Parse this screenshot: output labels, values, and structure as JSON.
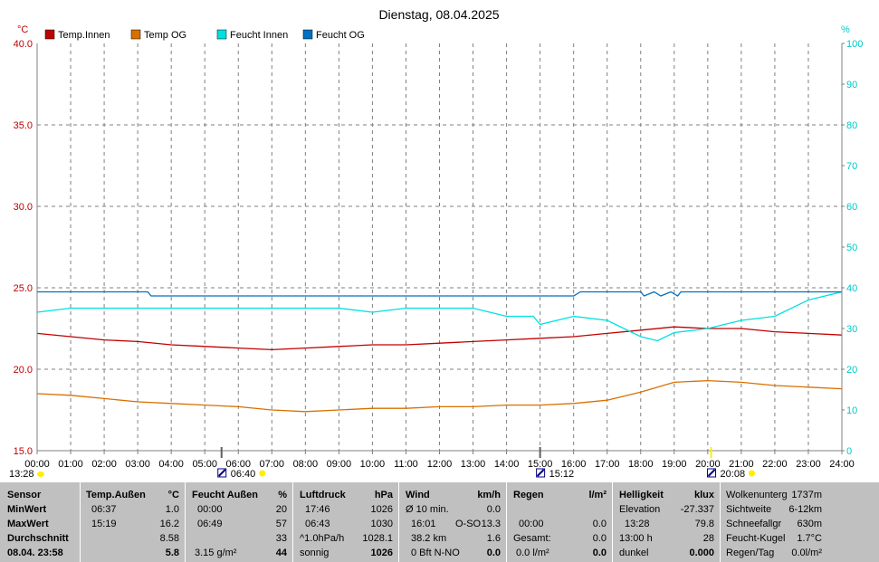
{
  "chart_data": {
    "type": "line",
    "title": "Dienstag, 08.04.2025",
    "y_left_unit": "°C",
    "y_right_unit": "%",
    "y_left_range": [
      15.0,
      40.0
    ],
    "y_right_range": [
      0,
      100
    ],
    "y_left_ticks": [
      "15.0",
      "20.0",
      "25.0",
      "30.0",
      "35.0",
      "40.0"
    ],
    "y_right_ticks": [
      "0",
      "10",
      "20",
      "30",
      "40",
      "50",
      "60",
      "70",
      "80",
      "90",
      "100"
    ],
    "x_ticks": [
      "00:00",
      "01:00",
      "02:00",
      "03:00",
      "04:00",
      "05:00",
      "06:00",
      "07:00",
      "08:00",
      "09:00",
      "10:00",
      "11:00",
      "12:00",
      "13:00",
      "14:00",
      "15:00",
      "16:00",
      "17:00",
      "18:00",
      "19:00",
      "20:00",
      "21:00",
      "22:00",
      "23:00",
      "24:00"
    ],
    "x_range_hours": [
      0,
      24
    ],
    "grid": true,
    "legend_position": "top-left",
    "series": [
      {
        "name": "Temp.Innen",
        "axis": "left",
        "color": "#c00000",
        "points": [
          [
            0,
            22.2
          ],
          [
            1,
            22.0
          ],
          [
            2,
            21.8
          ],
          [
            3,
            21.7
          ],
          [
            4,
            21.5
          ],
          [
            5,
            21.4
          ],
          [
            6,
            21.3
          ],
          [
            7,
            21.2
          ],
          [
            8,
            21.3
          ],
          [
            9,
            21.4
          ],
          [
            10,
            21.5
          ],
          [
            11,
            21.5
          ],
          [
            12,
            21.6
          ],
          [
            13,
            21.7
          ],
          [
            14,
            21.8
          ],
          [
            15,
            21.9
          ],
          [
            16,
            22.0
          ],
          [
            17,
            22.2
          ],
          [
            18,
            22.4
          ],
          [
            19,
            22.6
          ],
          [
            20,
            22.5
          ],
          [
            21,
            22.5
          ],
          [
            22,
            22.3
          ],
          [
            23,
            22.2
          ],
          [
            24,
            22.1
          ]
        ]
      },
      {
        "name": "Temp OG",
        "axis": "left",
        "color": "#d87000",
        "points": [
          [
            0,
            18.5
          ],
          [
            1,
            18.4
          ],
          [
            2,
            18.2
          ],
          [
            3,
            18.0
          ],
          [
            4,
            17.9
          ],
          [
            5,
            17.8
          ],
          [
            6,
            17.7
          ],
          [
            7,
            17.5
          ],
          [
            8,
            17.4
          ],
          [
            9,
            17.5
          ],
          [
            10,
            17.6
          ],
          [
            11,
            17.6
          ],
          [
            12,
            17.7
          ],
          [
            13,
            17.7
          ],
          [
            14,
            17.8
          ],
          [
            15,
            17.8
          ],
          [
            16,
            17.9
          ],
          [
            17,
            18.1
          ],
          [
            18,
            18.6
          ],
          [
            19,
            19.2
          ],
          [
            20,
            19.3
          ],
          [
            21,
            19.2
          ],
          [
            22,
            19.0
          ],
          [
            23,
            18.9
          ],
          [
            24,
            18.8
          ]
        ]
      },
      {
        "name": "Feucht Innen",
        "axis": "right",
        "color": "#00e0e0",
        "points": [
          [
            0,
            34
          ],
          [
            1,
            35
          ],
          [
            2,
            35
          ],
          [
            3,
            35
          ],
          [
            4,
            35
          ],
          [
            5,
            35
          ],
          [
            6,
            35
          ],
          [
            7,
            35
          ],
          [
            8,
            35
          ],
          [
            9,
            35
          ],
          [
            10,
            34
          ],
          [
            11,
            35
          ],
          [
            12,
            35
          ],
          [
            13,
            35
          ],
          [
            14,
            33
          ],
          [
            14.8,
            33
          ],
          [
            15,
            31
          ],
          [
            16,
            33
          ],
          [
            17,
            32
          ],
          [
            18,
            28
          ],
          [
            18.5,
            27
          ],
          [
            19,
            29
          ],
          [
            20,
            30
          ],
          [
            21,
            32
          ],
          [
            22,
            33
          ],
          [
            23,
            37
          ],
          [
            24,
            39
          ]
        ]
      },
      {
        "name": "Feucht OG",
        "axis": "right",
        "color": "#0070c0",
        "points": [
          [
            0,
            39
          ],
          [
            3.3,
            39
          ],
          [
            3.4,
            38
          ],
          [
            16,
            38
          ],
          [
            16.2,
            39
          ],
          [
            18,
            39
          ],
          [
            18.1,
            38
          ],
          [
            18.4,
            39
          ],
          [
            18.6,
            38
          ],
          [
            18.9,
            39
          ],
          [
            19.1,
            38
          ],
          [
            19.2,
            39
          ],
          [
            24,
            39
          ]
        ]
      }
    ],
    "annotations": [
      {
        "x_hours": 5.5,
        "marker_label": "06:40",
        "kind": "sunrise"
      },
      {
        "x_hours": 15.0,
        "marker_label": "15:12",
        "kind": "highpoint"
      },
      {
        "x_hours": 20.1,
        "marker_label": "20:08",
        "kind": "sunset"
      },
      {
        "x_hours": 0,
        "marker_label": "13:28",
        "kind": "moon"
      }
    ]
  },
  "panel": {
    "sensor": {
      "header": "Sensor",
      "min": "MinWert",
      "max": "MaxWert",
      "avg": "Durchschnitt",
      "current": "08.04. 23:58"
    },
    "temp": {
      "header": "Temp.Außen",
      "unit": "°C",
      "min_time": "06:37",
      "min_val": "1.0",
      "max_time": "15:19",
      "max_val": "16.2",
      "avg_val": "8.58",
      "current": "5.8"
    },
    "humid": {
      "header": "Feucht Außen",
      "unit": "%",
      "min_time": "00:00",
      "min_val": "20",
      "max_time": "06:49",
      "max_val": "57",
      "avg_val": "33",
      "abs": "3.15 g/m²",
      "current": "44"
    },
    "press": {
      "header": "Luftdruck",
      "unit": "hPa",
      "min_time": "17:46",
      "min_val": "1026",
      "max_time": "06:43",
      "max_val": "1030",
      "trend_label": "^1.0hPa/h",
      "trend_val": "1028.1",
      "forecast": "sonnig",
      "current": "1026"
    },
    "wind": {
      "header": "Wind",
      "unit": "km/h",
      "avg10_label": "Ø 10 min.",
      "avg10_val": "0.0",
      "max_time": "16:01",
      "max_dir": "O-SO",
      "max_val": "13.3",
      "dist_label": "38.2 km",
      "dist_val": "1.6",
      "bft": "0 Bft N-NO",
      "current": "0.0"
    },
    "rain": {
      "header": "Regen",
      "unit": "l/m²",
      "r1_time": "00:00",
      "r1_val": "0.0",
      "total_label": "Gesamt:",
      "total_val": "0.0",
      "cur_label": "0.0 l/m²",
      "current": "0.0"
    },
    "light": {
      "header": "Helligkeit",
      "unit": "klux",
      "elev_label": "Elevation",
      "elev_val": "-27.337",
      "max_time": "13:28",
      "max_val": "79.8",
      "hours_label": "13:00 h",
      "hours_val": "28",
      "state": "dunkel",
      "current": "0.000"
    },
    "extra": {
      "cloud_label": "Wolkenunterg",
      "cloud_val": "1737m",
      "vis_label": "Sichtweite",
      "vis_val": "6-12km",
      "snow_label": "Schneefallgr",
      "snow_val": "630m",
      "wet_label": "Feucht-Kugel",
      "wet_val": "1.7°C",
      "rainday_label": "Regen/Tag",
      "rainday_val": "0.0l/m²"
    }
  }
}
